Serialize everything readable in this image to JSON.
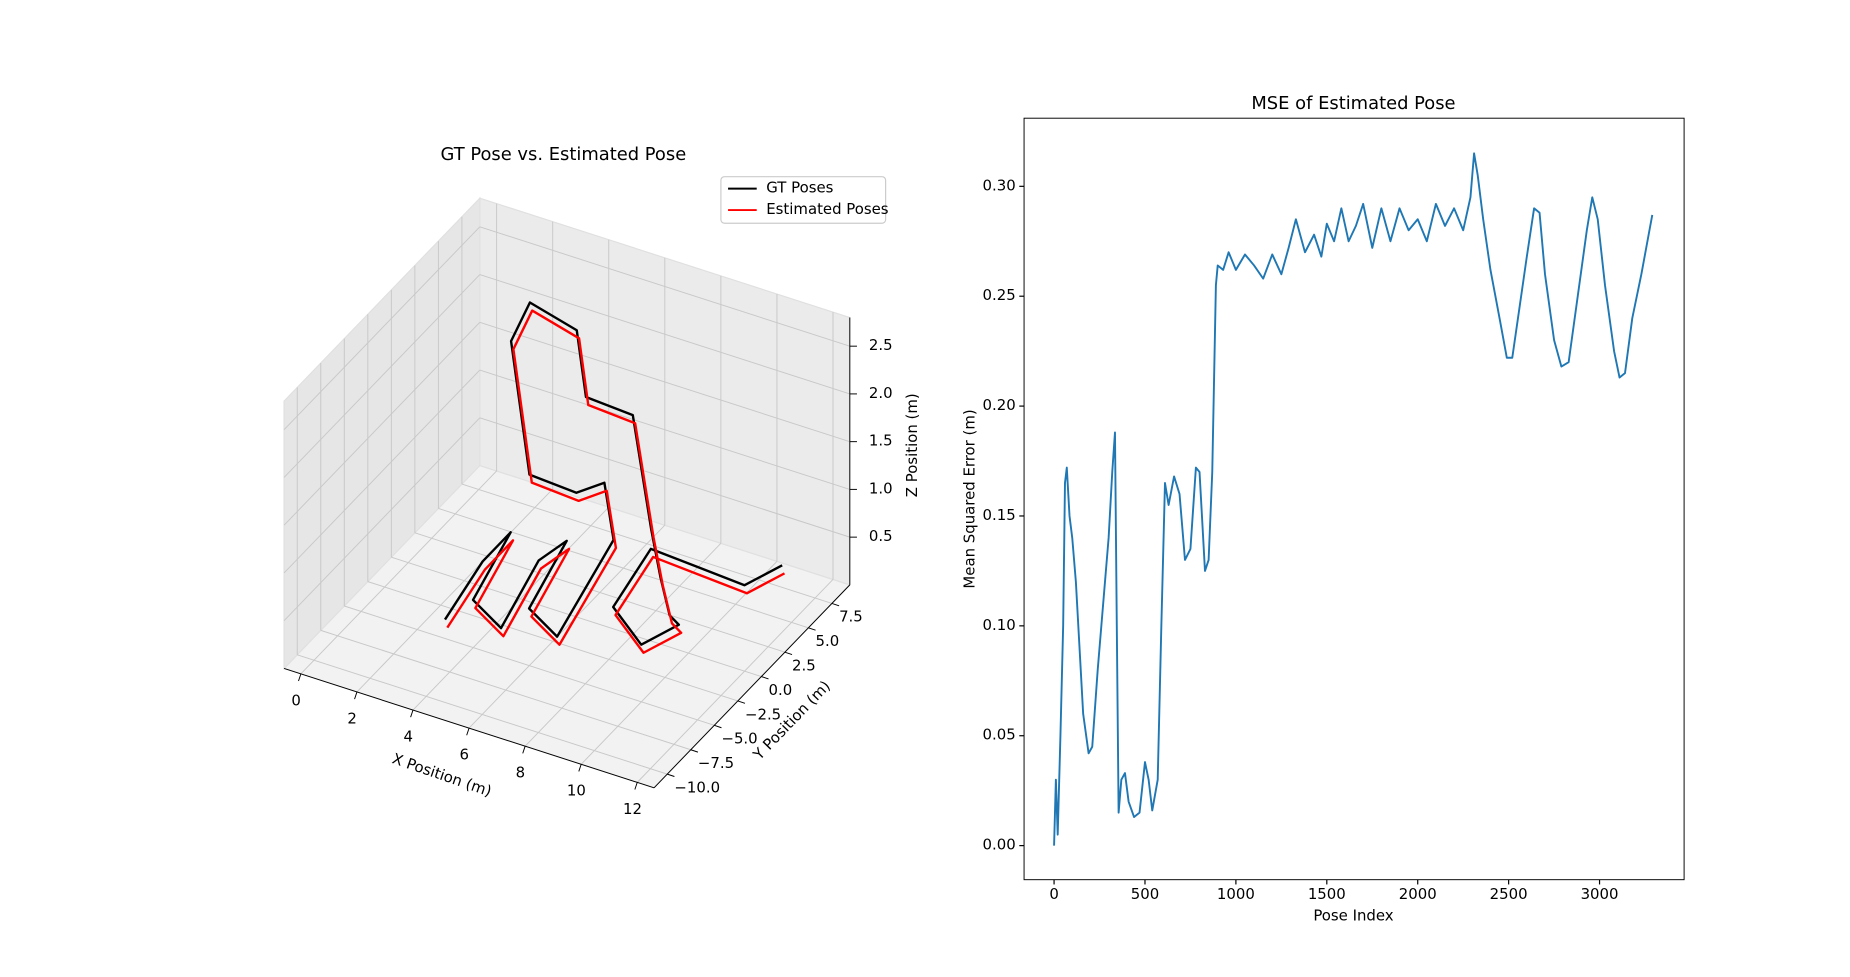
{
  "chart_data": [
    {
      "type": "line3d",
      "title": "GT Pose vs. Estimated Pose",
      "x_label": "X Position (m)",
      "y_label": "Y Position (m)",
      "z_label": "Z Position (m)",
      "xlim": [
        -0.6,
        12.6
      ],
      "ylim": [
        -11.4,
        9.4
      ],
      "zlim": [
        0,
        2.8
      ],
      "xticks": [
        0,
        2,
        4,
        6,
        8,
        10,
        12
      ],
      "yticks": [
        {
          "value": -10,
          "label": "−10.0"
        },
        {
          "value": -7.5,
          "label": "−7.5"
        },
        {
          "value": -5,
          "label": "−5.0"
        },
        {
          "value": -2.5,
          "label": "−2.5"
        },
        {
          "value": 0,
          "label": "0.0"
        },
        2.5,
        {
          "value": 5,
          "label": "5.0"
        },
        7.5
      ],
      "zticks": [
        0.5,
        {
          "value": 1,
          "label": "1.0"
        },
        1.5,
        {
          "value": 2,
          "label": "2.0"
        },
        2.5
      ],
      "legend": "upper right",
      "series": [
        {
          "name": "GT Poses",
          "color": "#000000",
          "x": [
            4,
            4,
            5,
            5,
            6,
            6,
            7,
            7,
            8,
            8,
            7,
            6,
            5,
            4,
            3,
            3,
            4,
            5,
            6,
            7,
            8,
            9,
            10,
            11,
            11,
            10,
            10,
            11,
            12,
            12
          ],
          "y": [
            -8,
            -4,
            -4,
            -8,
            -8,
            -4,
            -4,
            -8,
            -8,
            -2,
            0,
            0,
            -2,
            0,
            2,
            4,
            6,
            4,
            6,
            4,
            2,
            0,
            -2,
            -4,
            -8,
            -8,
            -4,
            -2,
            0,
            4
          ],
          "z": [
            0.6,
            0.8,
            1.2,
            0.9,
            0.7,
            1.0,
            1.3,
            1.0,
            0.8,
            1.2,
            1.5,
            1.3,
            1.6,
            2.0,
            2.4,
            2.6,
            2.2,
            1.8,
            1.5,
            1.2,
            0.9,
            0.7,
            0.6,
            0.8,
            1.0,
            1.3,
            1.5,
            1.2,
            0.9,
            0.7
          ]
        },
        {
          "name": "Estimated Poses",
          "color": "#ff0000",
          "x": [
            4.15,
            4.15,
            5.15,
            5.15,
            6.15,
            6.15,
            7.15,
            7.15,
            8.15,
            8.15,
            7.15,
            6.15,
            5.15,
            4.15,
            3.15,
            3.15,
            4.15,
            5.15,
            6.15,
            7.15,
            8.15,
            9.15,
            10.15,
            11.15,
            11.15,
            10.15,
            10.15,
            11.15,
            12.15,
            12.15
          ],
          "y": [
            -8.2,
            -4.2,
            -4.2,
            -8.2,
            -8.2,
            -4.2,
            -4.2,
            -8.2,
            -8.2,
            -2.2,
            -0.2,
            -0.2,
            -2.2,
            -0.2,
            1.8,
            3.8,
            5.8,
            3.8,
            5.8,
            3.8,
            1.8,
            -0.2,
            -2.2,
            -4.2,
            -8.2,
            -8.2,
            -4.2,
            -2.2,
            -0.2,
            3.8
          ],
          "z": [
            0.55,
            0.75,
            1.15,
            0.85,
            0.65,
            0.95,
            1.25,
            0.95,
            0.75,
            1.15,
            1.45,
            1.25,
            1.55,
            1.95,
            2.35,
            2.55,
            2.15,
            1.75,
            1.45,
            1.15,
            0.85,
            0.65,
            0.55,
            0.75,
            0.95,
            1.25,
            1.45,
            1.15,
            0.85,
            0.65
          ]
        }
      ]
    },
    {
      "type": "line",
      "title": "MSE of Estimated Pose",
      "x_label": "Pose Index",
      "y_label": "Mean Squared Error (m)",
      "xlim": [
        -165,
        3465
      ],
      "ylim": [
        -0.0155,
        0.331
      ],
      "xticks": [
        0,
        500,
        1000,
        1500,
        2000,
        2500,
        3000
      ],
      "yticks": [
        {
          "value": 0,
          "label": "0.00"
        },
        {
          "value": 0.05,
          "label": "0.05"
        },
        {
          "value": 0.1,
          "label": "0.10"
        },
        {
          "value": 0.15,
          "label": "0.15"
        },
        {
          "value": 0.2,
          "label": "0.20"
        },
        {
          "value": 0.25,
          "label": "0.25"
        },
        {
          "value": 0.3,
          "label": "0.30"
        }
      ],
      "color": "#1f77b4",
      "x": [
        0,
        10,
        20,
        35,
        50,
        60,
        70,
        85,
        100,
        120,
        140,
        160,
        190,
        210,
        240,
        270,
        300,
        320,
        335,
        345,
        355,
        370,
        390,
        410,
        440,
        470,
        500,
        520,
        540,
        570,
        590,
        610,
        630,
        660,
        690,
        720,
        750,
        780,
        800,
        830,
        850,
        870,
        890,
        900,
        930,
        960,
        1000,
        1050,
        1100,
        1150,
        1200,
        1250,
        1290,
        1330,
        1380,
        1430,
        1470,
        1500,
        1540,
        1580,
        1620,
        1660,
        1700,
        1750,
        1800,
        1850,
        1900,
        1950,
        2000,
        2050,
        2100,
        2150,
        2200,
        2250,
        2290,
        2310,
        2330,
        2360,
        2400,
        2450,
        2490,
        2520,
        2560,
        2600,
        2640,
        2670,
        2700,
        2750,
        2790,
        2830,
        2880,
        2930,
        2960,
        2990,
        3030,
        3080,
        3110,
        3140,
        3180,
        3230,
        3290
      ],
      "values": [
        0.0,
        0.03,
        0.005,
        0.05,
        0.1,
        0.165,
        0.172,
        0.15,
        0.14,
        0.12,
        0.09,
        0.06,
        0.042,
        0.045,
        0.08,
        0.11,
        0.14,
        0.17,
        0.188,
        0.1,
        0.015,
        0.03,
        0.033,
        0.02,
        0.013,
        0.015,
        0.038,
        0.03,
        0.016,
        0.03,
        0.1,
        0.165,
        0.155,
        0.168,
        0.16,
        0.13,
        0.135,
        0.172,
        0.17,
        0.125,
        0.13,
        0.17,
        0.255,
        0.264,
        0.262,
        0.27,
        0.262,
        0.269,
        0.264,
        0.258,
        0.269,
        0.26,
        0.272,
        0.285,
        0.27,
        0.278,
        0.268,
        0.283,
        0.275,
        0.29,
        0.275,
        0.282,
        0.292,
        0.272,
        0.29,
        0.275,
        0.29,
        0.28,
        0.285,
        0.275,
        0.292,
        0.282,
        0.29,
        0.28,
        0.295,
        0.315,
        0.305,
        0.285,
        0.262,
        0.24,
        0.222,
        0.222,
        0.245,
        0.268,
        0.29,
        0.288,
        0.26,
        0.23,
        0.218,
        0.22,
        0.25,
        0.28,
        0.295,
        0.285,
        0.255,
        0.225,
        0.213,
        0.215,
        0.24,
        0.26,
        0.287
      ]
    }
  ]
}
